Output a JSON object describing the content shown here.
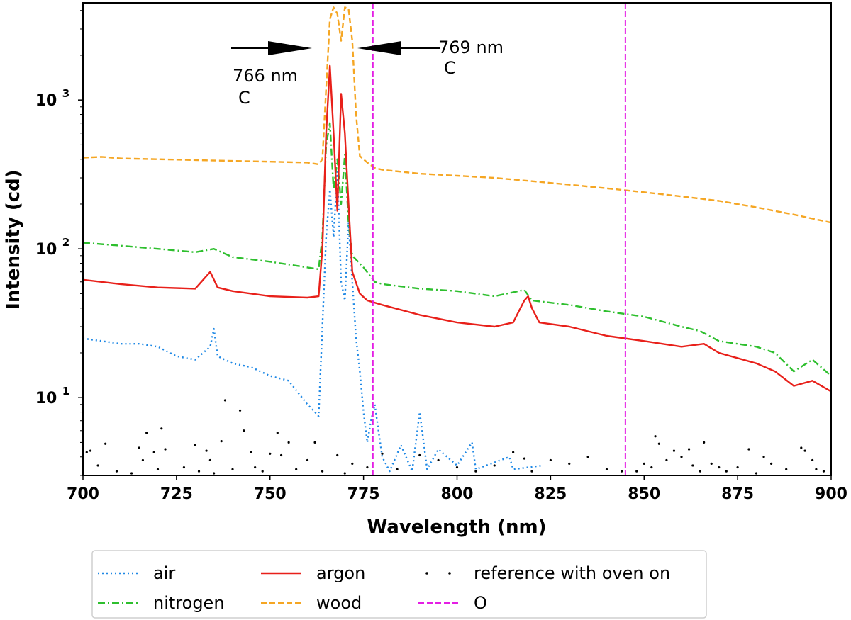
{
  "chart_data": {
    "type": "line",
    "xlabel": "Wavelength (nm)",
    "ylabel": "Intensity (cd)",
    "xlim": [
      700,
      900
    ],
    "ylim": [
      3,
      4500
    ],
    "yscale": "log",
    "grid": false,
    "legend_position": "bottom, outside below plot",
    "x_ticks": [
      700,
      725,
      750,
      775,
      800,
      825,
      850,
      875,
      900
    ],
    "x_tick_labels": [
      "700",
      "725",
      "750",
      "775",
      "800",
      "825",
      "850",
      "875",
      "900"
    ],
    "y_ticks": [
      10,
      100,
      1000
    ],
    "y_tick_bases": [
      "10",
      "10",
      "10"
    ],
    "y_tick_exponents": [
      "1",
      "2",
      "3"
    ],
    "vlines": [
      {
        "x": 777.5,
        "series": "O"
      },
      {
        "x": 845,
        "series": "O"
      }
    ],
    "annotations": [
      {
        "line1": "766 nm",
        "line2": "C",
        "x": 766,
        "direction": "arrow pointing right toward peak"
      },
      {
        "line1": "769 nm",
        "line2": "C",
        "x": 769,
        "direction": "arrow pointing left toward peak"
      }
    ],
    "series": [
      {
        "name": "air",
        "color": "#1e88e5",
        "style": "dotted",
        "points": [
          [
            700,
            25
          ],
          [
            705,
            24
          ],
          [
            710,
            23
          ],
          [
            715,
            23
          ],
          [
            720,
            22
          ],
          [
            725,
            19
          ],
          [
            730,
            18
          ],
          [
            734,
            22
          ],
          [
            735,
            29
          ],
          [
            736,
            19
          ],
          [
            740,
            17
          ],
          [
            745,
            16
          ],
          [
            750,
            14
          ],
          [
            755,
            13
          ],
          [
            760,
            9
          ],
          [
            762,
            8
          ],
          [
            763,
            7.5
          ],
          [
            764,
            30
          ],
          [
            765,
            120
          ],
          [
            766,
            250
          ],
          [
            767,
            120
          ],
          [
            768,
            330
          ],
          [
            769,
            60
          ],
          [
            770,
            45
          ],
          [
            771,
            150
          ],
          [
            772,
            60
          ],
          [
            773,
            25
          ],
          [
            774,
            15
          ],
          [
            775,
            8
          ],
          [
            776,
            5
          ],
          [
            777,
            7
          ],
          [
            778,
            9
          ],
          [
            779,
            6
          ],
          [
            780,
            4
          ],
          [
            782,
            3.2
          ],
          [
            785,
            4.8
          ],
          [
            788,
            3.2
          ],
          [
            790,
            8
          ],
          [
            792,
            3.3
          ],
          [
            795,
            4.5
          ],
          [
            800,
            3.5
          ],
          [
            804,
            5
          ],
          [
            805,
            3.3
          ],
          [
            814,
            4
          ],
          [
            815,
            3.3
          ],
          [
            823,
            3.5
          ]
        ]
      },
      {
        "name": "nitrogen",
        "color": "#2ebf2e",
        "style": "dashdot",
        "points": [
          [
            700,
            110
          ],
          [
            710,
            105
          ],
          [
            720,
            100
          ],
          [
            730,
            95
          ],
          [
            735,
            100
          ],
          [
            740,
            88
          ],
          [
            750,
            82
          ],
          [
            760,
            75
          ],
          [
            763,
            73
          ],
          [
            764,
            120
          ],
          [
            765,
            500
          ],
          [
            766,
            700
          ],
          [
            767,
            250
          ],
          [
            768,
            400
          ],
          [
            769,
            200
          ],
          [
            770,
            430
          ],
          [
            771,
            150
          ],
          [
            772,
            90
          ],
          [
            775,
            75
          ],
          [
            778,
            60
          ],
          [
            780,
            58
          ],
          [
            790,
            54
          ],
          [
            800,
            52
          ],
          [
            810,
            48
          ],
          [
            818,
            53
          ],
          [
            820,
            45
          ],
          [
            830,
            42
          ],
          [
            840,
            38
          ],
          [
            850,
            35
          ],
          [
            860,
            30
          ],
          [
            865,
            28
          ],
          [
            870,
            24
          ],
          [
            880,
            22
          ],
          [
            885,
            20
          ],
          [
            890,
            15
          ],
          [
            895,
            18
          ],
          [
            900,
            14
          ]
        ]
      },
      {
        "name": "argon",
        "color": "#e8201a",
        "style": "solid",
        "points": [
          [
            700,
            62
          ],
          [
            710,
            58
          ],
          [
            720,
            55
          ],
          [
            730,
            54
          ],
          [
            734,
            70
          ],
          [
            736,
            55
          ],
          [
            740,
            52
          ],
          [
            750,
            48
          ],
          [
            760,
            47
          ],
          [
            763,
            48
          ],
          [
            764,
            100
          ],
          [
            765,
            600
          ],
          [
            766,
            1700
          ],
          [
            767,
            600
          ],
          [
            768,
            180
          ],
          [
            769,
            1100
          ],
          [
            770,
            600
          ],
          [
            771,
            200
          ],
          [
            772,
            70
          ],
          [
            774,
            50
          ],
          [
            776,
            45
          ],
          [
            780,
            42
          ],
          [
            790,
            36
          ],
          [
            800,
            32
          ],
          [
            810,
            30
          ],
          [
            815,
            32
          ],
          [
            818,
            45
          ],
          [
            819,
            48
          ],
          [
            820,
            40
          ],
          [
            822,
            32
          ],
          [
            830,
            30
          ],
          [
            840,
            26
          ],
          [
            850,
            24
          ],
          [
            860,
            22
          ],
          [
            866,
            23
          ],
          [
            870,
            20
          ],
          [
            880,
            17
          ],
          [
            885,
            15
          ],
          [
            890,
            12
          ],
          [
            895,
            13
          ],
          [
            900,
            11
          ]
        ]
      },
      {
        "name": "wood",
        "color": "#f5a623",
        "style": "dashed",
        "points": [
          [
            700,
            410
          ],
          [
            705,
            415
          ],
          [
            710,
            405
          ],
          [
            720,
            400
          ],
          [
            730,
            395
          ],
          [
            740,
            390
          ],
          [
            750,
            385
          ],
          [
            760,
            380
          ],
          [
            763,
            370
          ],
          [
            764,
            400
          ],
          [
            765,
            1200
          ],
          [
            766,
            3500
          ],
          [
            767,
            4200
          ],
          [
            768,
            3800
          ],
          [
            769,
            2500
          ],
          [
            770,
            4200
          ],
          [
            771,
            4100
          ],
          [
            772,
            2500
          ],
          [
            773,
            800
          ],
          [
            774,
            420
          ],
          [
            776,
            380
          ],
          [
            778,
            350
          ],
          [
            780,
            340
          ],
          [
            790,
            320
          ],
          [
            800,
            310
          ],
          [
            810,
            300
          ],
          [
            820,
            285
          ],
          [
            830,
            270
          ],
          [
            840,
            255
          ],
          [
            850,
            240
          ],
          [
            860,
            225
          ],
          [
            870,
            210
          ],
          [
            880,
            190
          ],
          [
            890,
            170
          ],
          [
            900,
            150
          ]
        ]
      },
      {
        "name": "reference with oven on",
        "color": "#000000",
        "style": "dots",
        "points": [
          [
            701,
            4.3
          ],
          [
            702,
            4.4
          ],
          [
            704,
            3.5
          ],
          [
            706,
            4.9
          ],
          [
            709,
            3.2
          ],
          [
            713,
            3.1
          ],
          [
            715,
            4.6
          ],
          [
            716,
            3.8
          ],
          [
            717,
            5.8
          ],
          [
            719,
            4.3
          ],
          [
            720,
            3.3
          ],
          [
            721,
            6.2
          ],
          [
            722,
            4.5
          ],
          [
            727,
            3.4
          ],
          [
            730,
            4.8
          ],
          [
            731,
            3.2
          ],
          [
            733,
            4.4
          ],
          [
            734,
            3.8
          ],
          [
            735,
            3.1
          ],
          [
            737,
            5.1
          ],
          [
            738,
            9.6
          ],
          [
            740,
            3.3
          ],
          [
            742,
            8.2
          ],
          [
            743,
            6
          ],
          [
            745,
            4.3
          ],
          [
            746,
            3.4
          ],
          [
            748,
            3.2
          ],
          [
            750,
            4.2
          ],
          [
            752,
            5.8
          ],
          [
            753,
            4.1
          ],
          [
            755,
            5
          ],
          [
            757,
            3.3
          ],
          [
            760,
            3.8
          ],
          [
            762,
            5
          ],
          [
            764,
            3.2
          ],
          [
            768,
            4.1
          ],
          [
            770,
            3.1
          ],
          [
            772,
            3.6
          ],
          [
            776,
            3.4
          ],
          [
            780,
            4.2
          ],
          [
            784,
            3.3
          ],
          [
            790,
            4.1
          ],
          [
            795,
            3.8
          ],
          [
            800,
            3.4
          ],
          [
            805,
            3.2
          ],
          [
            810,
            3.5
          ],
          [
            815,
            4.3
          ],
          [
            818,
            3.9
          ],
          [
            820,
            3.2
          ],
          [
            825,
            3.8
          ],
          [
            830,
            3.6
          ],
          [
            835,
            4
          ],
          [
            840,
            3.3
          ],
          [
            844,
            3.2
          ],
          [
            848,
            3.2
          ],
          [
            850,
            3.6
          ],
          [
            852,
            3.4
          ],
          [
            853,
            5.5
          ],
          [
            854,
            4.9
          ],
          [
            856,
            3.8
          ],
          [
            858,
            4.4
          ],
          [
            860,
            4
          ],
          [
            862,
            4.5
          ],
          [
            863,
            3.5
          ],
          [
            865,
            3.2
          ],
          [
            866,
            5
          ],
          [
            868,
            3.6
          ],
          [
            870,
            3.4
          ],
          [
            872,
            3.2
          ],
          [
            875,
            3.4
          ],
          [
            878,
            4.5
          ],
          [
            880,
            3.1
          ],
          [
            882,
            4
          ],
          [
            884,
            3.6
          ],
          [
            888,
            3.3
          ],
          [
            892,
            4.6
          ],
          [
            893,
            4.4
          ],
          [
            895,
            3.8
          ],
          [
            896,
            3.3
          ],
          [
            898,
            3.2
          ]
        ]
      },
      {
        "name": "O",
        "color": "#e41ee4",
        "style": "dashed",
        "points": []
      }
    ],
    "legend": [
      {
        "label": "air",
        "color": "#1e88e5",
        "style": "dotted"
      },
      {
        "label": "argon",
        "color": "#e8201a",
        "style": "solid"
      },
      {
        "label": "reference with oven on",
        "color": "#000000",
        "style": "dots"
      },
      {
        "label": "nitrogen",
        "color": "#2ebf2e",
        "style": "dashdot"
      },
      {
        "label": "wood",
        "color": "#f5a623",
        "style": "dashed"
      },
      {
        "label": "O",
        "color": "#e41ee4",
        "style": "dashed"
      }
    ]
  }
}
